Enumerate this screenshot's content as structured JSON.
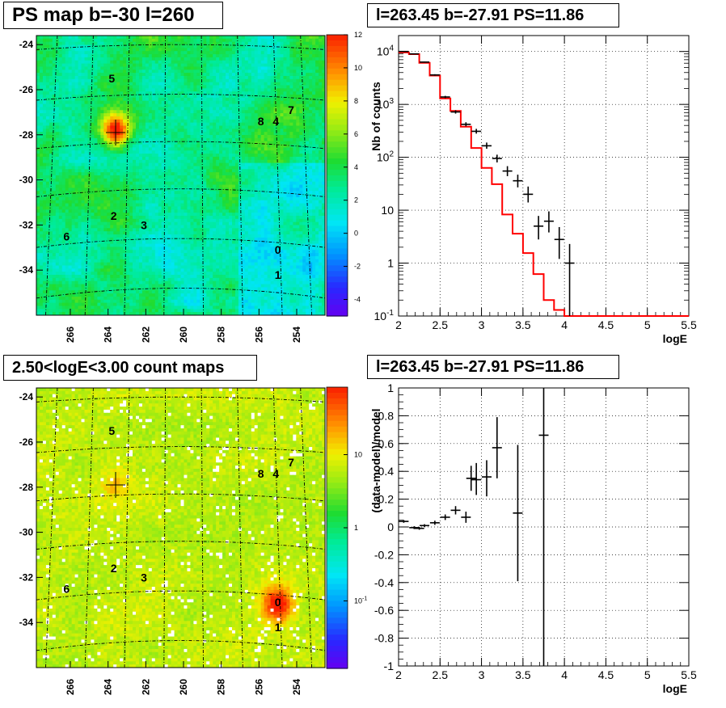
{
  "chart_data": [
    {
      "type": "heatmap",
      "title": "PS map b=-30 l=260",
      "x_ticks": [
        "266",
        "264",
        "262",
        "260",
        "258",
        "256",
        "254"
      ],
      "y_ticks": [
        "-24",
        "-26",
        "-28",
        "-30",
        "-32",
        "-34"
      ],
      "xlim": [
        267.8,
        252.5
      ],
      "ylim": [
        -36.0,
        -23.6
      ],
      "z_scale": "linear",
      "zlim": [
        -5,
        12
      ],
      "colorbar_ticks": [
        "12",
        "10",
        "8",
        "6",
        "4",
        "2",
        "0",
        "-2",
        "-4"
      ],
      "background_level": 3,
      "grid": true,
      "hot_spots": [
        {
          "x": 263.6,
          "y": -27.8,
          "sigma": 0.55,
          "amp": 9
        }
      ],
      "sources": [
        {
          "label": "5",
          "x": 263.8,
          "y": -25.5
        },
        {
          "label": "8",
          "x": 255.9,
          "y": -27.4
        },
        {
          "label": "4",
          "x": 255.1,
          "y": -27.4
        },
        {
          "label": "7",
          "x": 254.3,
          "y": -26.9
        },
        {
          "label": "2",
          "x": 263.7,
          "y": -31.6
        },
        {
          "label": "3",
          "x": 262.1,
          "y": -32.0
        },
        {
          "label": "6",
          "x": 266.2,
          "y": -32.5
        },
        {
          "label": "0",
          "x": 255.0,
          "y": -33.1
        },
        {
          "label": "1",
          "x": 255.0,
          "y": -34.2
        }
      ],
      "marker": {
        "x": 263.6,
        "y": -27.9
      }
    },
    {
      "type": "line",
      "title": "l=263.45 b=-27.91 PS=11.86",
      "xlabel": "logE",
      "ylabel": "Nb of counts",
      "xlim": [
        2,
        5.5
      ],
      "ylim": [
        0.1,
        20000
      ],
      "y_scale": "log",
      "x_ticks": [
        "2",
        "2.5",
        "3",
        "3.5",
        "4",
        "4.5",
        "5",
        "5.5"
      ],
      "y_ticks": [
        {
          "value": 0.1,
          "label": "10",
          "exp": "-1"
        },
        {
          "value": 1,
          "label": "1",
          "exp": ""
        },
        {
          "value": 10,
          "label": "10",
          "exp": ""
        },
        {
          "value": 100,
          "label": "10",
          "exp": "2"
        },
        {
          "value": 1000,
          "label": "10",
          "exp": "3"
        },
        {
          "value": 10000,
          "label": "10",
          "exp": "4"
        }
      ],
      "grid": true,
      "model_color": "#ff0000",
      "model_steps": [
        {
          "x0": 2.0,
          "x1": 2.125,
          "y": 9600
        },
        {
          "x0": 2.125,
          "x1": 2.25,
          "y": 8900
        },
        {
          "x0": 2.25,
          "x1": 2.375,
          "y": 6100
        },
        {
          "x0": 2.375,
          "x1": 2.5,
          "y": 3500
        },
        {
          "x0": 2.5,
          "x1": 2.625,
          "y": 1300
        },
        {
          "x0": 2.625,
          "x1": 2.75,
          "y": 750
        },
        {
          "x0": 2.75,
          "x1": 2.875,
          "y": 380
        },
        {
          "x0": 2.875,
          "x1": 3.0,
          "y": 150
        },
        {
          "x0": 3.0,
          "x1": 3.125,
          "y": 63
        },
        {
          "x0": 3.125,
          "x1": 3.25,
          "y": 31
        },
        {
          "x0": 3.25,
          "x1": 3.375,
          "y": 8.3
        },
        {
          "x0": 3.375,
          "x1": 3.5,
          "y": 3.6
        },
        {
          "x0": 3.5,
          "x1": 3.625,
          "y": 1.55
        },
        {
          "x0": 3.625,
          "x1": 3.75,
          "y": 0.62
        },
        {
          "x0": 3.75,
          "x1": 3.875,
          "y": 0.2
        },
        {
          "x0": 3.875,
          "x1": 4.0,
          "y": 0.13
        },
        {
          "x0": 4.0,
          "x1": 5.5,
          "y": 0.1
        }
      ],
      "data_points": [
        {
          "x": 2.0625,
          "y": 10000,
          "lo": 9800,
          "hi": 10200
        },
        {
          "x": 2.1875,
          "y": 9000,
          "lo": 8800,
          "hi": 9200
        },
        {
          "x": 2.3125,
          "y": 6300,
          "lo": 6150,
          "hi": 6450
        },
        {
          "x": 2.4375,
          "y": 3600,
          "lo": 3480,
          "hi": 3720
        },
        {
          "x": 2.5625,
          "y": 1380,
          "lo": 1310,
          "hi": 1450
        },
        {
          "x": 2.6875,
          "y": 720,
          "lo": 670,
          "hi": 775
        },
        {
          "x": 2.8125,
          "y": 420,
          "lo": 385,
          "hi": 460
        },
        {
          "x": 2.9375,
          "y": 310,
          "lo": 280,
          "hi": 345
        },
        {
          "x": 3.0625,
          "y": 165,
          "lo": 145,
          "hi": 190
        },
        {
          "x": 3.1875,
          "y": 95,
          "lo": 80,
          "hi": 112
        },
        {
          "x": 3.3125,
          "y": 55,
          "lo": 44,
          "hi": 68
        },
        {
          "x": 3.4375,
          "y": 36,
          "lo": 27,
          "hi": 47
        },
        {
          "x": 3.5625,
          "y": 20,
          "lo": 14,
          "hi": 28
        },
        {
          "x": 3.6875,
          "y": 5,
          "lo": 2.8,
          "hi": 7.8
        },
        {
          "x": 3.8125,
          "y": 6.2,
          "lo": 3.8,
          "hi": 9.5
        },
        {
          "x": 3.9375,
          "y": 2.8,
          "lo": 1.2,
          "hi": 4.8
        },
        {
          "x": 4.0625,
          "y": 1.0,
          "lo": 0.1,
          "hi": 2.3
        }
      ]
    },
    {
      "type": "heatmap",
      "title": "2.50<logE<3.00 count maps",
      "x_ticks": [
        "266",
        "264",
        "262",
        "260",
        "258",
        "256",
        "254"
      ],
      "y_ticks": [
        "-24",
        "-26",
        "-28",
        "-30",
        "-32",
        "-34"
      ],
      "xlim": [
        267.8,
        252.5
      ],
      "ylim": [
        -36.0,
        -23.6
      ],
      "z_scale": "log",
      "colorbar_ticks": [
        {
          "value": 10,
          "label": "10"
        },
        {
          "value": 1,
          "label": "1"
        },
        {
          "value": 0.1,
          "label": "10",
          "exp": "-1"
        }
      ],
      "background_level": 4.5,
      "grid": true,
      "hot_spots": [
        {
          "x": 255.0,
          "y": -33.2,
          "sigma": 0.55,
          "amp": 1.8
        },
        {
          "x": 263.6,
          "y": -27.9,
          "sigma": 0.5,
          "amp": 0.5
        }
      ],
      "sources": [
        {
          "label": "5",
          "x": 263.8,
          "y": -25.5
        },
        {
          "label": "8",
          "x": 255.9,
          "y": -27.4
        },
        {
          "label": "4",
          "x": 255.1,
          "y": -27.4
        },
        {
          "label": "7",
          "x": 254.3,
          "y": -26.9
        },
        {
          "label": "2",
          "x": 263.7,
          "y": -31.6
        },
        {
          "label": "3",
          "x": 262.1,
          "y": -32.0
        },
        {
          "label": "6",
          "x": 266.2,
          "y": -32.5
        },
        {
          "label": "0",
          "x": 255.0,
          "y": -33.1
        },
        {
          "label": "1",
          "x": 255.0,
          "y": -34.2
        }
      ],
      "marker": {
        "x": 263.6,
        "y": -27.9
      }
    },
    {
      "type": "scatter",
      "title": "l=263.45 b=-27.91 PS=11.86",
      "xlabel": "logE",
      "ylabel": "(data-model)/model",
      "xlim": [
        2,
        5.5
      ],
      "ylim": [
        -1,
        1
      ],
      "x_ticks": [
        "2",
        "2.5",
        "3",
        "3.5",
        "4",
        "4.5",
        "5",
        "5.5"
      ],
      "y_ticks": [
        "1",
        "0.8",
        "0.6",
        "0.4",
        "0.2",
        "0",
        "-0.2",
        "-0.4",
        "-0.6",
        "-0.8",
        "-1"
      ],
      "grid": true,
      "data_points": [
        {
          "x": 2.0625,
          "y": 0.04,
          "lo": 0.03,
          "hi": 0.05
        },
        {
          "x": 2.1875,
          "y": -0.005,
          "lo": -0.015,
          "hi": 0.005
        },
        {
          "x": 2.25,
          "y": -0.01,
          "lo": -0.02,
          "hi": 0.0
        },
        {
          "x": 2.3125,
          "y": 0.01,
          "lo": 0.0,
          "hi": 0.02
        },
        {
          "x": 2.4375,
          "y": 0.03,
          "lo": 0.015,
          "hi": 0.045
        },
        {
          "x": 2.5625,
          "y": 0.07,
          "lo": 0.05,
          "hi": 0.09
        },
        {
          "x": 2.6875,
          "y": 0.12,
          "lo": 0.09,
          "hi": 0.15
        },
        {
          "x": 2.8125,
          "y": 0.07,
          "lo": 0.03,
          "hi": 0.11
        },
        {
          "x": 2.875,
          "y": 0.35,
          "lo": 0.26,
          "hi": 0.44
        },
        {
          "x": 2.9375,
          "y": 0.34,
          "lo": 0.23,
          "hi": 0.46
        },
        {
          "x": 3.0625,
          "y": 0.36,
          "lo": 0.22,
          "hi": 0.48
        },
        {
          "x": 3.1875,
          "y": 0.57,
          "lo": 0.35,
          "hi": 0.79
        },
        {
          "x": 3.4375,
          "y": 0.1,
          "lo": -0.39,
          "hi": 0.59
        },
        {
          "x": 3.75,
          "y": 0.66,
          "lo": -1.0,
          "hi": 1.0
        }
      ]
    }
  ]
}
